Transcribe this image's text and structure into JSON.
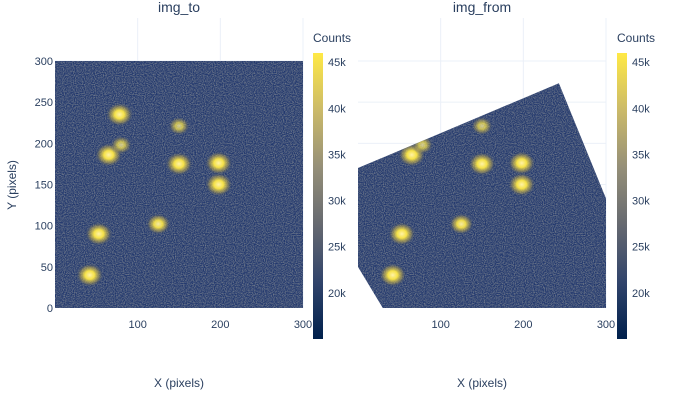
{
  "chart_data": [
    {
      "type": "heatmap",
      "title": "img_to",
      "xlabel": "X (pixels)",
      "ylabel": "Y (pixels)",
      "xlim": [
        0,
        300
      ],
      "ylim": [
        0,
        300
      ],
      "x_ticks": [
        100,
        200,
        300
      ],
      "y_ticks": [
        0,
        50,
        100,
        150,
        200,
        250,
        300
      ],
      "grid": true,
      "sources": [
        {
          "x": 42,
          "y": 40,
          "peak": 45000
        },
        {
          "x": 53,
          "y": 90,
          "peak": 45000
        },
        {
          "x": 65,
          "y": 186,
          "peak": 45000
        },
        {
          "x": 78,
          "y": 235,
          "peak": 45000
        },
        {
          "x": 80,
          "y": 198,
          "peak": 30000
        },
        {
          "x": 125,
          "y": 102,
          "peak": 38000
        },
        {
          "x": 150,
          "y": 175,
          "peak": 45000
        },
        {
          "x": 150,
          "y": 221,
          "peak": 30000
        },
        {
          "x": 198,
          "y": 176,
          "peak": 45000
        },
        {
          "x": 198,
          "y": 150,
          "peak": 45000
        }
      ],
      "mask": "full"
    },
    {
      "type": "heatmap",
      "title": "img_from",
      "xlabel": "X (pixels)",
      "xlim": [
        0,
        300
      ],
      "ylim": [
        0,
        300
      ],
      "x_ticks": [
        100,
        200,
        300
      ],
      "grid": true,
      "sources": [
        {
          "x": 42,
          "y": 40,
          "peak": 45000
        },
        {
          "x": 53,
          "y": 90,
          "peak": 45000
        },
        {
          "x": 65,
          "y": 186,
          "peak": 45000
        },
        {
          "x": 78,
          "y": 198,
          "peak": 30000
        },
        {
          "x": 125,
          "y": 102,
          "peak": 38000
        },
        {
          "x": 150,
          "y": 175,
          "peak": 45000
        },
        {
          "x": 150,
          "y": 221,
          "peak": 30000
        },
        {
          "x": 198,
          "y": 176,
          "peak": 45000
        },
        {
          "x": 198,
          "y": 150,
          "peak": 45000
        }
      ],
      "mask": "rotated",
      "mask_polygon_data": [
        [
          0,
          170
        ],
        [
          243,
          273
        ],
        [
          300,
          133
        ],
        [
          300,
          0
        ],
        [
          30,
          0
        ],
        [
          0,
          50
        ]
      ]
    }
  ],
  "colorbar": {
    "title": "Counts",
    "colorscale": "cividis",
    "range": [
      15000,
      46000
    ],
    "ticks": [
      20000,
      25000,
      30000,
      35000,
      40000,
      45000
    ],
    "tick_labels": [
      "20k",
      "25k",
      "30k",
      "35k",
      "40k",
      "45k"
    ]
  },
  "colors": {
    "text": "#2a3f5f",
    "grid": "#ebf0f8",
    "background": "#ffffff",
    "noise_base": "#22386e"
  }
}
